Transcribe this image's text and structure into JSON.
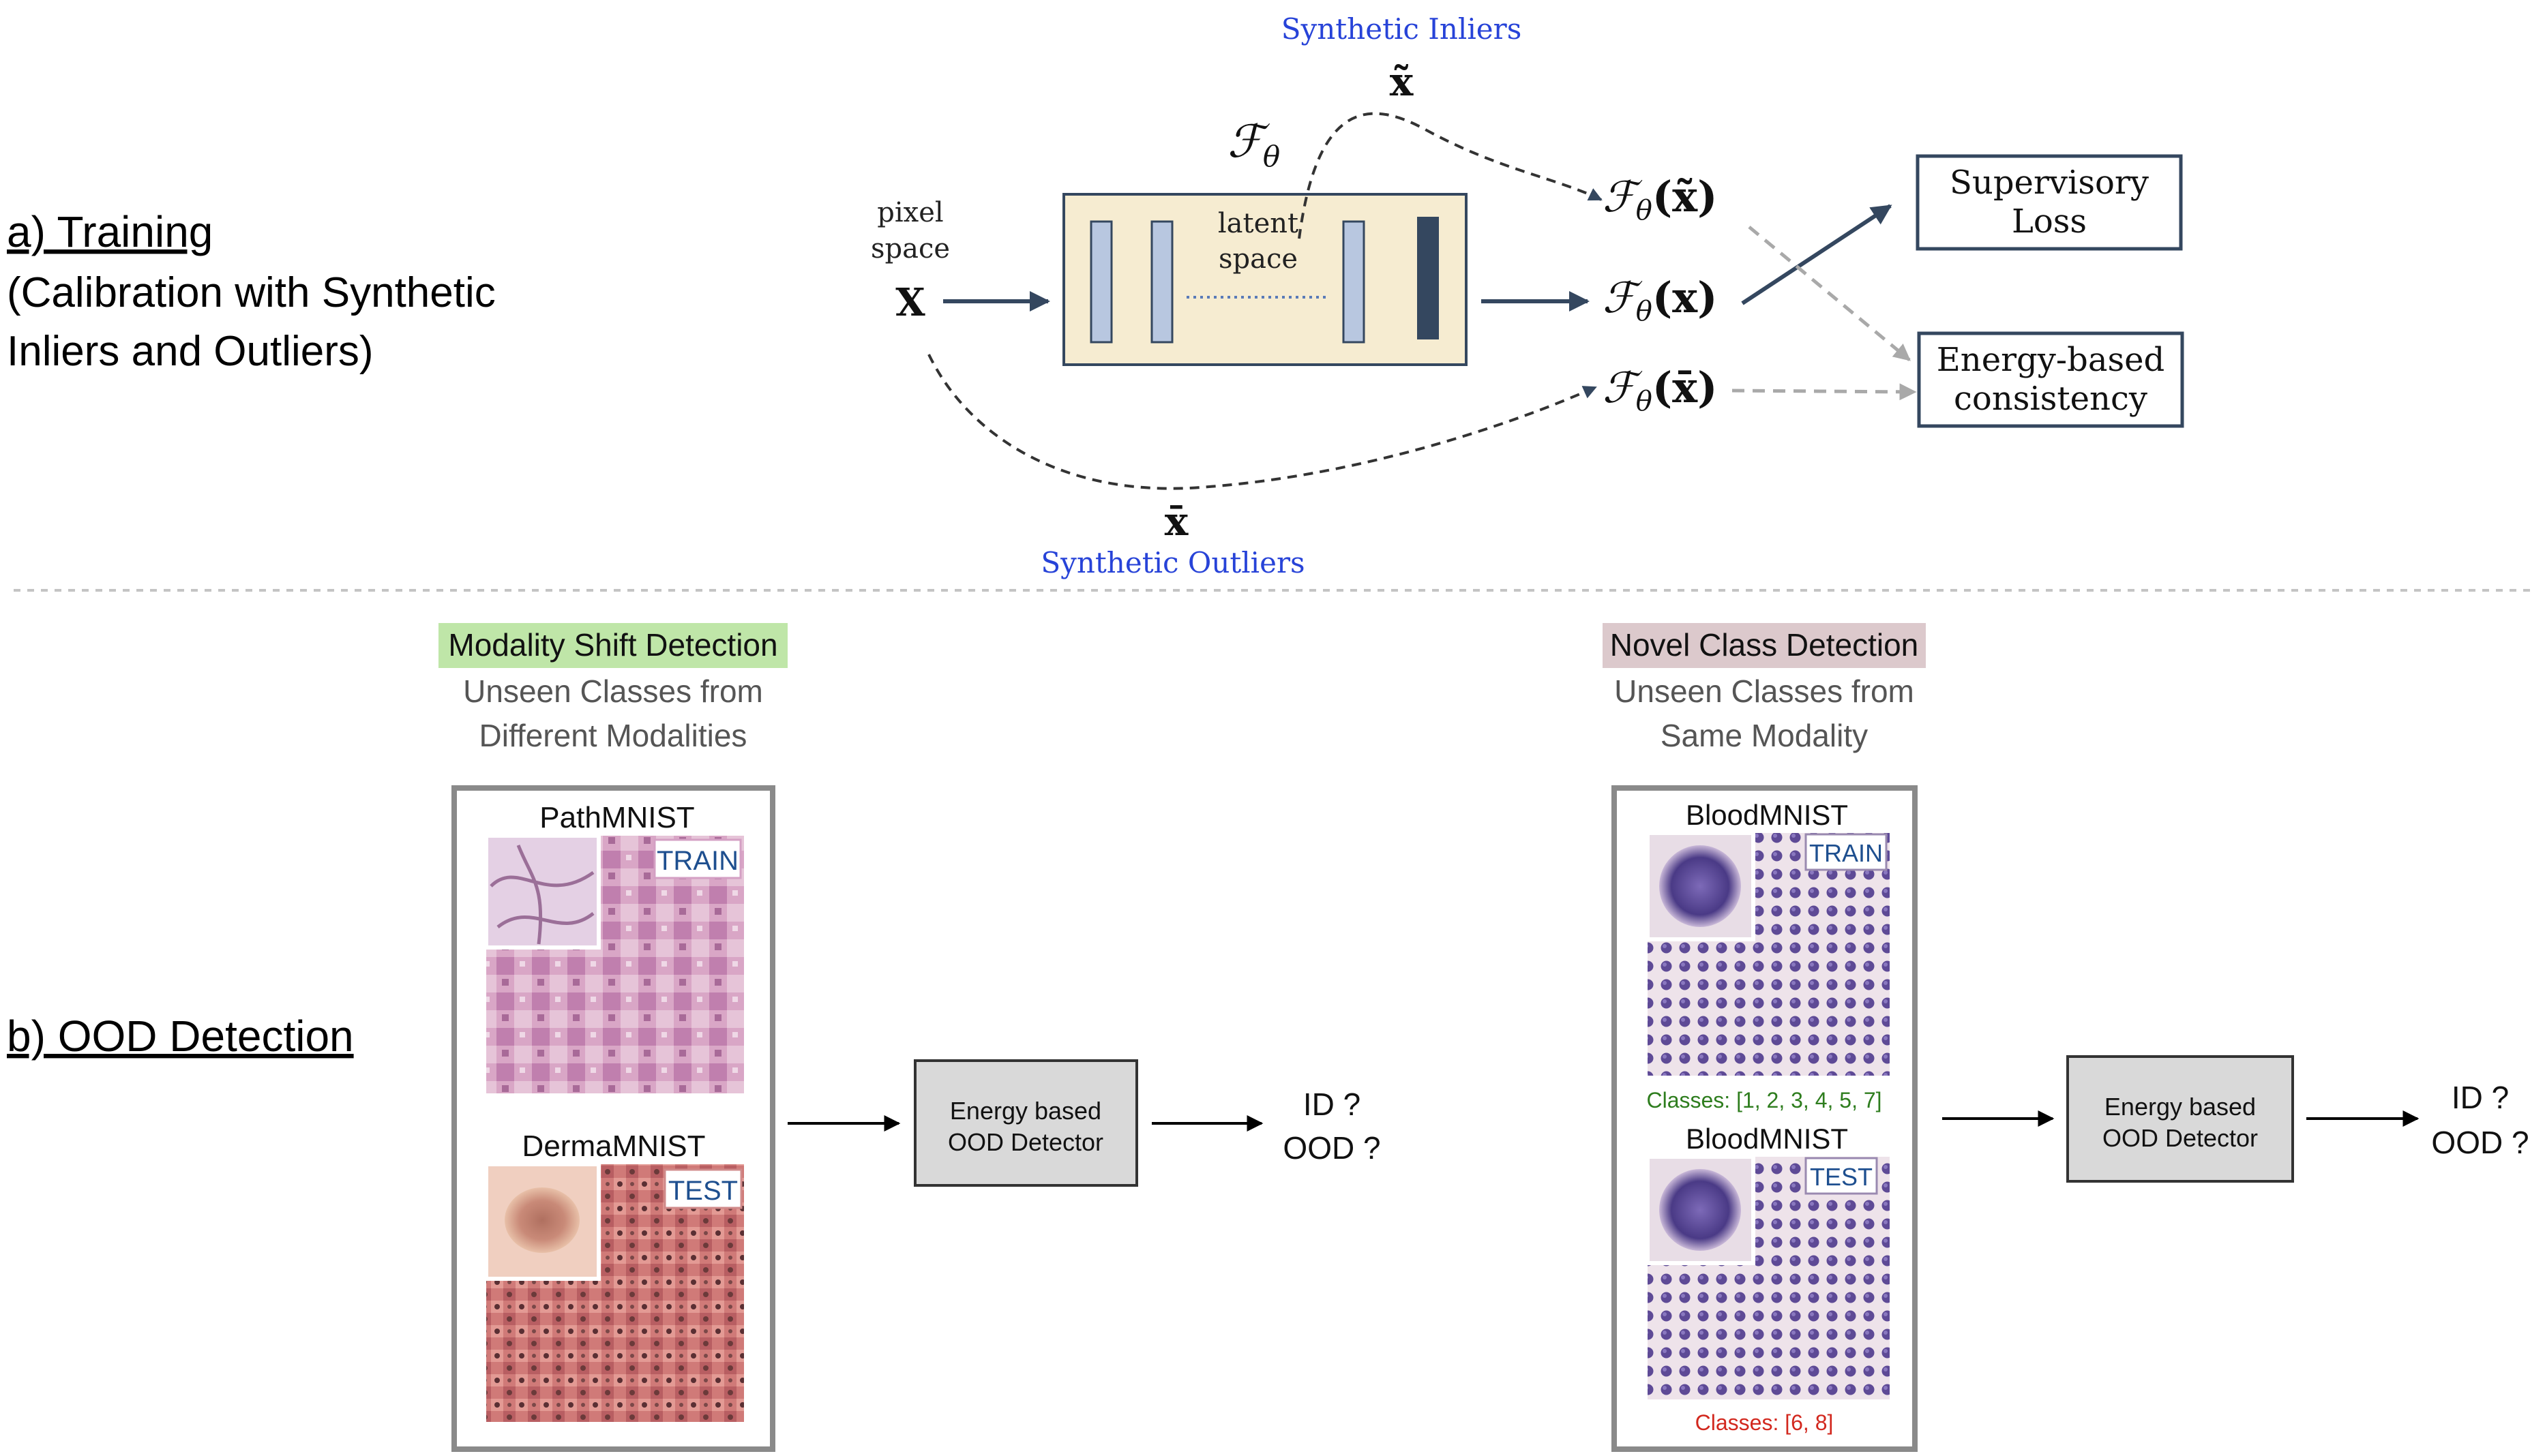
{
  "training": {
    "label": "a) Training",
    "caption_line1": "(Calibration with Synthetic",
    "caption_line2": "Inliers and Outliers)",
    "pixel_space_line1": "pixel",
    "pixel_space_line2": "space",
    "input_symbol": "X",
    "model_symbol": "ℱ",
    "model_subscript": "θ",
    "latent_line1": "latent",
    "latent_line2": "space",
    "inliers_label": "Synthetic Inliers",
    "inliers_symbol": "x̃",
    "outliers_label": "Synthetic Outliers",
    "outliers_symbol": "x̄",
    "out_inlier": "(x̃)",
    "out_clean": "(x)",
    "out_outlier": "(x̄)",
    "sup_loss_line1": "Supervisory",
    "sup_loss_line2": "Loss",
    "energy_line1": "Energy-based",
    "energy_line2": "consistency"
  },
  "ood": {
    "label": "b) OOD Detection",
    "modality": {
      "title": "Modality Shift Detection",
      "sub_line1": "Unseen Classes from",
      "sub_line2": "Different Modalities",
      "train_dataset": "PathMNIST",
      "test_dataset": "DermaMNIST",
      "train_tag": "TRAIN",
      "test_tag": "TEST",
      "detector_line1": "Energy based",
      "detector_line2": "OOD Detector",
      "result_line1": "ID ?",
      "result_line2": "OOD ?"
    },
    "novel": {
      "title": "Novel Class Detection",
      "sub_line1": "Unseen Classes from",
      "sub_line2": "Same Modality",
      "train_dataset": "BloodMNIST",
      "test_dataset": "BloodMNIST",
      "train_tag": "TRAIN",
      "test_tag": "TEST",
      "train_classes": "Classes: [1, 2, 3, 4, 5, 7]",
      "test_classes": "Classes: [6, 8]",
      "detector_line1": "Energy based",
      "detector_line2": "OOD Detector",
      "result_line1": "ID ?",
      "result_line2": "OOD ?"
    }
  },
  "colors": {
    "model_box_fill": "#f6ecd1",
    "layer_light": "#b8c7e0",
    "layer_dark": "#34475f",
    "arrow_dark": "#34475f",
    "synthetic_blue": "#2743d8",
    "modality_highlight": "#bfe6a8",
    "novel_highlight": "#dcc9cc",
    "detector_fill": "#d9d9d9",
    "train_classes_green": "#2e7d1e",
    "test_classes_red": "#d2281e",
    "path_tissue": "#d8a8c8",
    "derma_skin": "#c98478",
    "blood_bg": "#eae0e8",
    "blood_cell": "#5a4790"
  }
}
